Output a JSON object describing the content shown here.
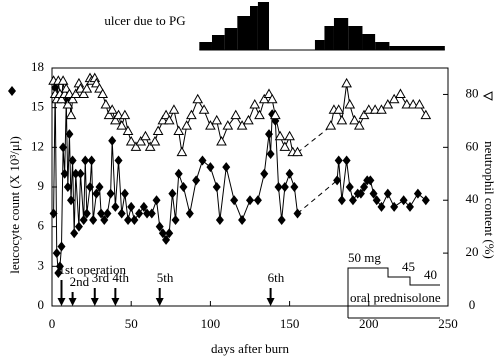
{
  "chart_data": {
    "type": "line",
    "xlabel": "days after burn",
    "ylabel": "leucocyte count (X 10³/μl)",
    "y2label": "neutrophil content (%)",
    "xlim": [
      0,
      250
    ],
    "xticks": [
      0,
      50,
      100,
      150,
      200,
      250
    ],
    "ylim": [
      0,
      18
    ],
    "yticks": [
      0,
      3,
      6,
      9,
      12,
      15,
      18
    ],
    "y2lim": [
      0,
      90
    ],
    "y2ticks": [
      0,
      20,
      40,
      60,
      80
    ],
    "dashed_after": 155,
    "series": [
      {
        "color": "#000000",
        "marker": "diamond",
        "x": [
          1,
          2,
          3,
          4,
          5,
          6,
          7,
          8,
          9,
          10,
          11,
          12,
          13,
          14,
          15,
          17,
          18,
          20,
          21,
          22,
          24,
          25,
          26,
          28,
          30,
          31,
          33,
          35,
          37,
          38,
          40,
          42,
          44,
          46,
          48,
          50,
          52,
          55,
          58,
          60,
          63,
          66,
          68,
          70,
          72,
          74,
          76,
          78,
          80,
          83,
          87,
          91,
          95,
          100,
          104,
          106,
          110,
          115,
          120,
          125,
          130,
          134,
          137,
          138,
          139,
          141,
          143,
          145,
          147,
          150,
          153,
          155,
          180,
          181,
          183,
          186,
          188,
          190,
          193,
          195,
          197,
          199,
          201,
          203,
          205,
          208,
          212,
          216,
          222,
          226,
          231,
          236
        ],
        "values": [
          7,
          16.5,
          4,
          2.5,
          3,
          4.5,
          12,
          10,
          15.5,
          9,
          13,
          8,
          11,
          5.5,
          10,
          6,
          10,
          6.5,
          11,
          7,
          9,
          11,
          6.5,
          8.5,
          9,
          7,
          6.5,
          7,
          8.5,
          12.5,
          7.5,
          11,
          7,
          8.5,
          6.5,
          7.5,
          6.5,
          7,
          7.5,
          7,
          7,
          8,
          6,
          5.5,
          5,
          5.5,
          8.5,
          6.5,
          10,
          9,
          7,
          9.5,
          11,
          10.5,
          9,
          6.5,
          10.5,
          8,
          6.5,
          8,
          8,
          10,
          13,
          11.5,
          14.5,
          14,
          9,
          6.5,
          9,
          10,
          9,
          7,
          9.5,
          11,
          8,
          11,
          9,
          8,
          8.5,
          8.5,
          9,
          9.5,
          9.5,
          8.5,
          8,
          7.5,
          8.5,
          7.5,
          8,
          7.5,
          8.5,
          8
        ]
      },
      {
        "color": "#000000",
        "marker": "triangle",
        "axis": "y2",
        "x": [
          1,
          2,
          3,
          4,
          5,
          6,
          7,
          8,
          9,
          10,
          11,
          12,
          13,
          15,
          17,
          18,
          20,
          22,
          24,
          25,
          27,
          28,
          30,
          32,
          34,
          36,
          38,
          40,
          42,
          44,
          46,
          48,
          50,
          53,
          56,
          59,
          62,
          65,
          67,
          70,
          72,
          74,
          77,
          80,
          82,
          85,
          88,
          92,
          96,
          100,
          104,
          107,
          111,
          116,
          120,
          124,
          128,
          131,
          134,
          137,
          139,
          141,
          144,
          147,
          150,
          152,
          155,
          176,
          178,
          181,
          183,
          186,
          188,
          191,
          194,
          197,
          200,
          204,
          208,
          212,
          216,
          220,
          224,
          228,
          232,
          236
        ],
        "values": [
          85,
          80,
          78,
          85,
          80,
          78,
          85,
          80,
          82,
          76,
          80,
          72,
          78,
          80,
          84,
          82,
          80,
          82,
          86,
          85,
          86,
          84,
          82,
          80,
          76,
          72,
          74,
          70,
          72,
          68,
          72,
          66,
          62,
          60,
          62,
          64,
          60,
          62,
          66,
          70,
          72,
          70,
          74,
          66,
          58,
          68,
          72,
          78,
          74,
          68,
          70,
          62,
          68,
          72,
          68,
          70,
          76,
          72,
          78,
          80,
          78,
          72,
          64,
          60,
          64,
          58,
          58,
          68,
          74,
          74,
          70,
          84,
          76,
          70,
          68,
          72,
          74,
          74,
          74,
          76,
          78,
          80,
          76,
          76,
          76,
          72
        ]
      }
    ],
    "annotations": [
      {
        "text": "1st operation",
        "x": 6
      },
      {
        "text": "2nd",
        "x": 13
      },
      {
        "text": "3rd",
        "x": 27
      },
      {
        "text": "4th",
        "x": 40
      },
      {
        "text": "5th",
        "x": 68
      },
      {
        "text": "6th",
        "x": 138
      }
    ],
    "ulcer": {
      "label": "ulcer due to PG",
      "ylim": [
        0,
        50
      ],
      "bins": [
        93,
        101,
        109,
        117,
        125,
        130,
        137,
        166,
        172,
        178,
        187,
        196,
        204,
        213,
        248
      ],
      "values": [
        8,
        15,
        22,
        34,
        44,
        48,
        0,
        10,
        24,
        32,
        24,
        16,
        8,
        4
      ]
    },
    "inset": {
      "title": "oral prednisolone",
      "doses": [
        "50 mg",
        "45",
        "40"
      ]
    }
  }
}
